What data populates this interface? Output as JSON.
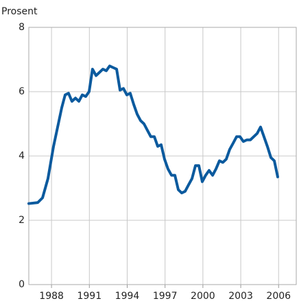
{
  "chart_data": {
    "type": "line",
    "y_axis_label": "Prosent",
    "x": [
      1986.2,
      1986.91,
      1987.29,
      1987.72,
      1988.16,
      1988.54,
      1988.81,
      1989.08,
      1989.35,
      1989.62,
      1989.9,
      1990.17,
      1990.44,
      1990.71,
      1990.98,
      1991.25,
      1991.53,
      1991.8,
      1992.07,
      1992.34,
      1992.61,
      1992.88,
      1993.16,
      1993.43,
      1993.7,
      1993.97,
      1994.24,
      1994.52,
      1994.79,
      1995.06,
      1995.33,
      1995.6,
      1995.87,
      1996.15,
      1996.42,
      1996.69,
      1996.96,
      1997.23,
      1997.51,
      1997.78,
      1998.05,
      1998.32,
      1998.59,
      1998.86,
      1999.14,
      1999.41,
      1999.68,
      1999.95,
      2000.22,
      2000.49,
      2000.77,
      2001.04,
      2001.31,
      2001.58,
      2001.85,
      2002.12,
      2002.4,
      2002.67,
      2002.94,
      2003.21,
      2003.48,
      2003.76,
      2004.03,
      2004.3,
      2004.57,
      2004.84,
      2005.11,
      2005.39,
      2005.66,
      2005.93
    ],
    "series": [
      {
        "color": "#0b5a9e",
        "values": [
          2.52,
          2.55,
          2.7,
          3.3,
          4.3,
          5.0,
          5.5,
          5.9,
          5.95,
          5.7,
          5.8,
          5.7,
          5.9,
          5.85,
          6.0,
          6.7,
          6.5,
          6.6,
          6.7,
          6.65,
          6.8,
          6.75,
          6.7,
          6.05,
          6.1,
          5.9,
          5.95,
          5.6,
          5.3,
          5.1,
          5.0,
          4.8,
          4.6,
          4.6,
          4.3,
          4.35,
          3.9,
          3.6,
          3.4,
          3.4,
          2.95,
          2.85,
          2.9,
          3.1,
          3.3,
          3.7,
          3.7,
          3.2,
          3.4,
          3.55,
          3.4,
          3.6,
          3.85,
          3.8,
          3.9,
          4.2,
          4.4,
          4.6,
          4.6,
          4.45,
          4.5,
          4.5,
          4.6,
          4.7,
          4.9,
          4.6,
          4.3,
          3.95,
          3.85,
          3.35
        ]
      }
    ],
    "xlim": [
      1986.2,
      2007.4
    ],
    "xticks": [
      1988,
      1991,
      1994,
      1997,
      2000,
      2003,
      2006
    ],
    "ylim": [
      0,
      8
    ],
    "yticks": [
      0,
      2,
      4,
      6,
      8
    ],
    "grid": true
  }
}
